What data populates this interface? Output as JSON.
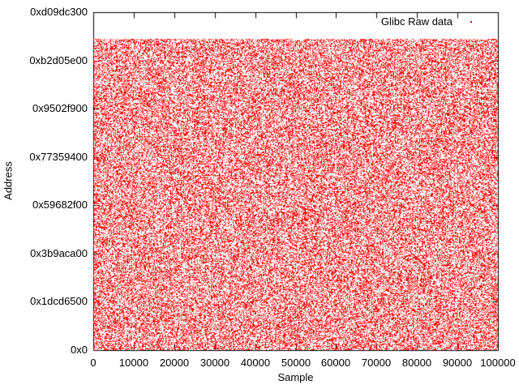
{
  "window": {
    "background": "#ffffff"
  },
  "chart_data": {
    "type": "scatter",
    "title": "",
    "xlabel": "Sample",
    "ylabel": "Address",
    "legend": {
      "position": "top-right-inside",
      "entries": [
        {
          "label": "Glibc Raw data",
          "color": "#ff0000",
          "marker": "dot"
        }
      ]
    },
    "axes": {
      "xlim": [
        0,
        100000
      ],
      "ylim": [
        0,
        3500000000
      ],
      "grid": false,
      "tick_direction": "in",
      "mirror_ticks": true,
      "x_ticks": [
        {
          "value": 0,
          "label": "0"
        },
        {
          "value": 10000,
          "label": "10000"
        },
        {
          "value": 20000,
          "label": "20000"
        },
        {
          "value": 30000,
          "label": "30000"
        },
        {
          "value": 40000,
          "label": "40000"
        },
        {
          "value": 50000,
          "label": "50000"
        },
        {
          "value": 60000,
          "label": "60000"
        },
        {
          "value": 70000,
          "label": "70000"
        },
        {
          "value": 80000,
          "label": "80000"
        },
        {
          "value": 90000,
          "label": "90000"
        },
        {
          "value": 100000,
          "label": "100000"
        }
      ],
      "y_ticks": [
        {
          "value": 0,
          "label": "0x0"
        },
        {
          "value": 500000000,
          "label": "0x1dcd6500"
        },
        {
          "value": 1000000000,
          "label": "0x3b9aca00"
        },
        {
          "value": 1500000000,
          "label": "0x59682f00"
        },
        {
          "value": 2000000000,
          "label": "0x77359400"
        },
        {
          "value": 2500000000,
          "label": "0x9502f900"
        },
        {
          "value": 3000000000,
          "label": "0xb2d05e00"
        },
        {
          "value": 3500000000,
          "label": "0xd09dc300"
        }
      ]
    },
    "series": [
      {
        "name": "Glibc Raw data",
        "style": "dots",
        "color": "#ff0000",
        "n_points": 100000,
        "x_min": 0,
        "x_max": 100000,
        "y_min": 0,
        "y_max": 3221225472,
        "y_max_hex": "0xc0000000",
        "distribution": "uniform-random"
      }
    ],
    "colors": {
      "points": "#ff0000",
      "axis": "#000000",
      "text": "#000000",
      "background": "#ffffff"
    }
  }
}
